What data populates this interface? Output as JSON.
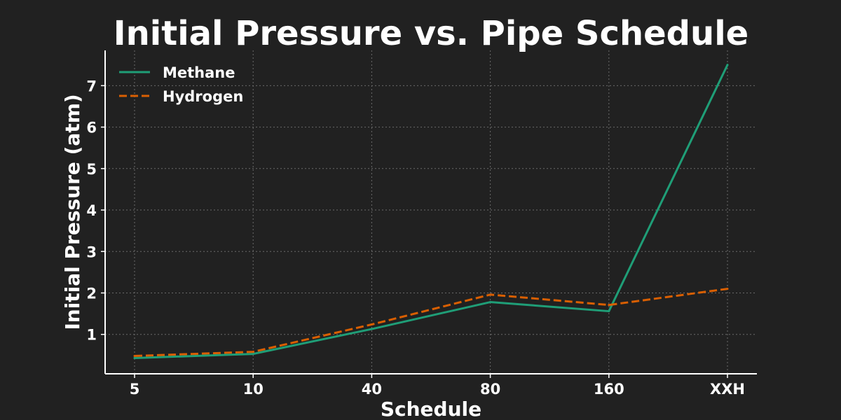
{
  "chart_data": {
    "type": "line",
    "title": "Initial Pressure vs. Pipe Schedule",
    "xlabel": "Schedule",
    "ylabel": "Initial Pressure (atm)",
    "categories": [
      "5",
      "10",
      "40",
      "80",
      "160",
      "XXH"
    ],
    "yticks": [
      1,
      2,
      3,
      4,
      5,
      6,
      7
    ],
    "ylim": [
      0.05,
      7.85
    ],
    "grid": true,
    "legend_position": "top-left",
    "series": [
      {
        "name": "Methane",
        "values": [
          0.43,
          0.53,
          1.13,
          1.78,
          1.56,
          7.5
        ],
        "color": "#1f9e77",
        "style": "solid"
      },
      {
        "name": "Hydrogen",
        "values": [
          0.48,
          0.58,
          1.24,
          1.96,
          1.71,
          2.1
        ],
        "color": "#d95f02",
        "style": "dashed"
      }
    ]
  }
}
